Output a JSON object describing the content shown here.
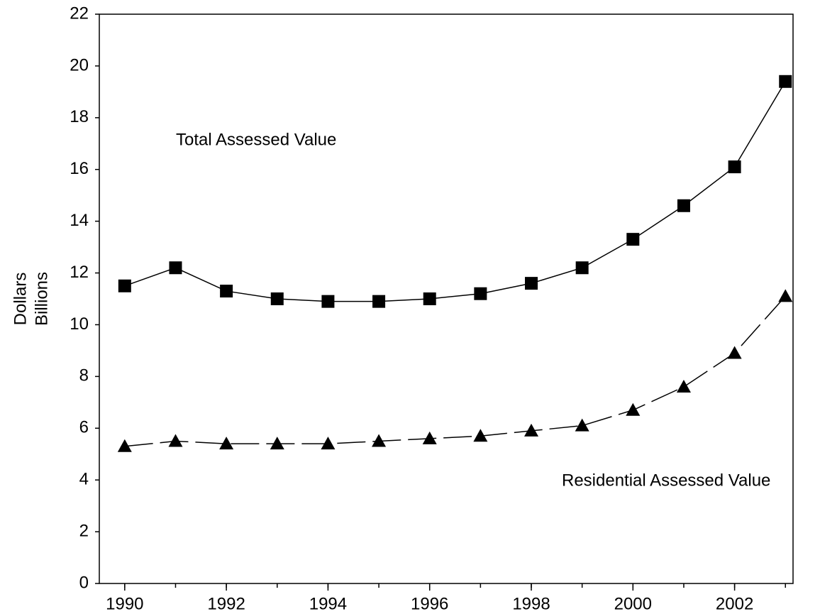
{
  "chart_data": {
    "type": "line",
    "ylabel": [
      "Dollars",
      "Billions"
    ],
    "annotations": [
      "Total Assessed Value",
      "Residential Assessed Value"
    ],
    "x": [
      1990,
      1991,
      1992,
      1993,
      1994,
      1995,
      1996,
      1997,
      1998,
      1999,
      2000,
      2001,
      2002,
      2003
    ],
    "series": [
      {
        "name": "Total Assessed Value",
        "color": "#000000",
        "marker": "square",
        "dashed": false,
        "values": [
          11.5,
          12.2,
          11.3,
          11.0,
          10.9,
          10.9,
          11.0,
          11.2,
          11.6,
          12.2,
          13.3,
          14.6,
          16.1,
          19.4
        ]
      },
      {
        "name": "Residential Assessed Value",
        "color": "#000000",
        "marker": "triangle",
        "dashed": true,
        "values": [
          5.3,
          5.5,
          5.4,
          5.4,
          5.4,
          5.5,
          5.6,
          5.7,
          5.9,
          6.1,
          6.7,
          7.6,
          8.9,
          11.1
        ]
      }
    ],
    "xlim": [
      1989.5,
      2003.15
    ],
    "xticks": [
      1990,
      1992,
      1994,
      1996,
      1998,
      2000,
      2002
    ],
    "ylim": [
      0,
      22
    ],
    "yticks": [
      0,
      2,
      4,
      6,
      8,
      10,
      12,
      14,
      16,
      18,
      20,
      22
    ],
    "grid": false
  }
}
